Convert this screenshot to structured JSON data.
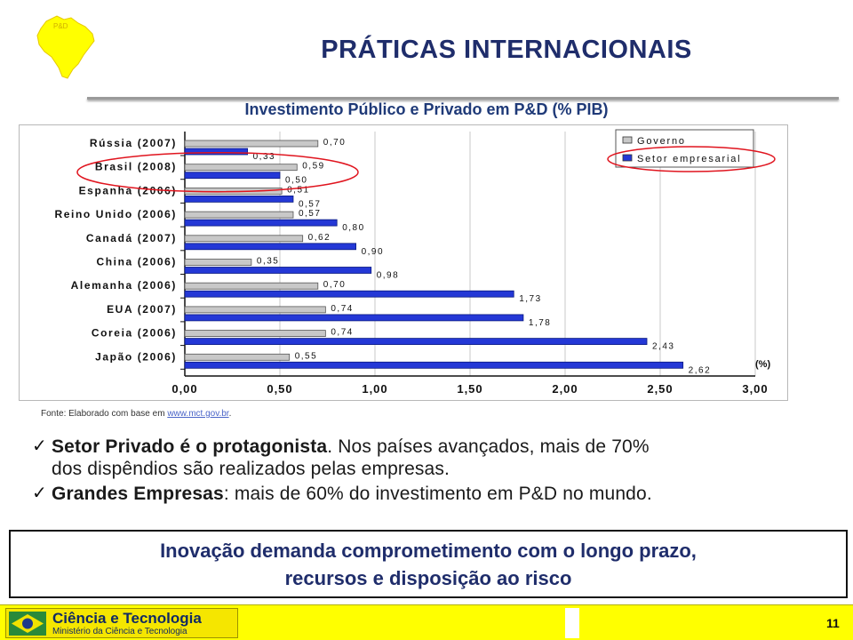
{
  "slide": {
    "title": "PRÁTICAS INTERNACIONAIS",
    "chart_heading": "Investimento Público e Privado em P&D (% PIB)",
    "source_prefix": "Fonte: Elaborado com base em ",
    "source_link": "www.mct.gov.br",
    "source_suffix": ".",
    "bullets": [
      {
        "bold": "Setor Privado é o protagonista",
        "text": ". Nos países avançados, mais de 70%",
        "line2": "dos dispêndios são realizados pelas empresas."
      },
      {
        "bold": "Grandes Empresas",
        "text": ": mais de 60% do investimento em P&D no mundo.",
        "line2": ""
      }
    ],
    "callout_line1": "Inovação demanda comprometimento com o longo prazo,",
    "callout_line2": "recursos e disposição ao risco",
    "footer_brand": "Ciência e Tecnologia",
    "footer_sub": "Ministério da Ciência e Tecnologia",
    "page_number": "11",
    "check_glyph": "✓",
    "colors": {
      "title": "#1f2d6b",
      "governo": "#c8c8c8",
      "setor_empresarial": "#2438d6",
      "highlight_ellipse": "#e0141e",
      "footer": "#ffff00"
    }
  },
  "chart_data": {
    "type": "bar",
    "orientation": "horizontal",
    "title": "",
    "categories": [
      "Rússia (2007)",
      "Brasil (2008)",
      "Espanha (2006)",
      "Reino Unido (2006)",
      "Canadá (2007)",
      "China (2006)",
      "Alemanha (2006)",
      "EUA (2007)",
      "Coreia (2006)",
      "Japão (2006)"
    ],
    "series": [
      {
        "name": "Governo",
        "values": [
          0.7,
          0.59,
          0.51,
          0.57,
          0.62,
          0.35,
          0.7,
          0.74,
          0.74,
          0.55
        ],
        "labels": [
          "0,70",
          "0,59",
          "0,51",
          "0,57",
          "0,62",
          "0,35",
          "0,70",
          "0,74",
          "0,74",
          "0,55"
        ]
      },
      {
        "name": "Setor empresarial",
        "values": [
          0.33,
          0.5,
          0.57,
          0.8,
          0.9,
          0.98,
          1.73,
          1.78,
          2.43,
          2.62
        ],
        "labels": [
          "0,33",
          "0,50",
          "0,57",
          "0,80",
          "0,90",
          "0,98",
          "1,73",
          "1,78",
          "2,43",
          "2,62"
        ]
      }
    ],
    "x_ticks": [
      "0,00",
      "0,50",
      "1,00",
      "1,50",
      "2,00",
      "2,50",
      "3,00"
    ],
    "xlim": [
      0,
      3
    ],
    "unit_label": "(%)",
    "grid": true,
    "legend_position": "top-right",
    "highlighted_category": "Brasil (2008)"
  }
}
